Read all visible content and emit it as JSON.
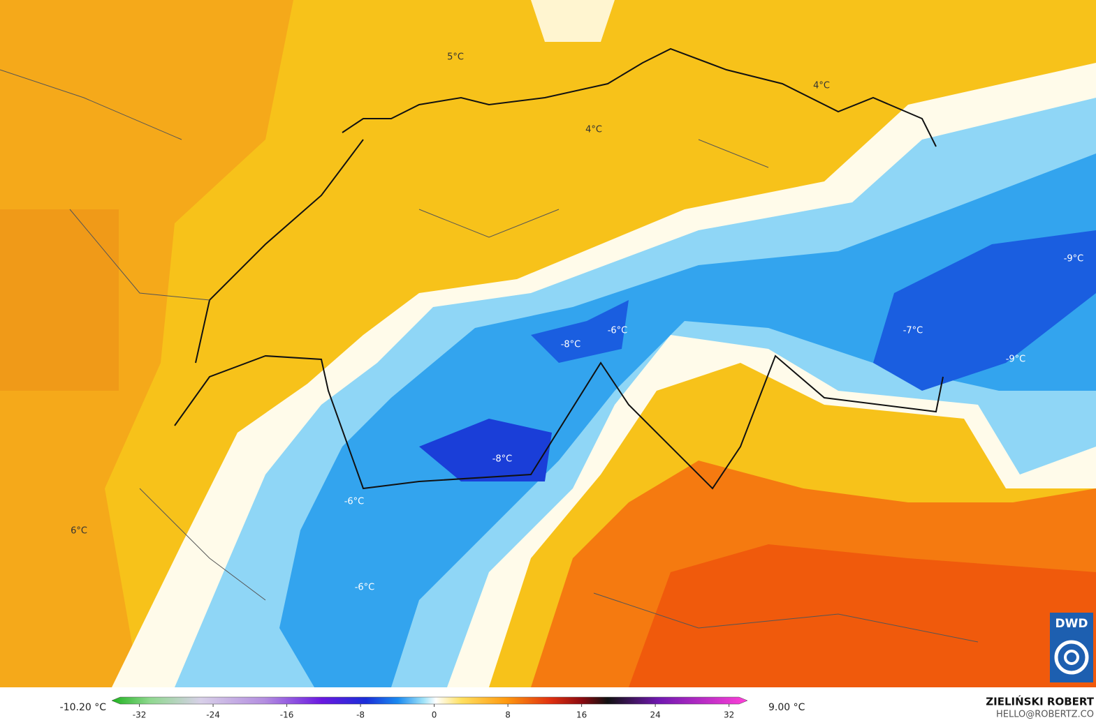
{
  "map": {
    "labels": [
      "5°C",
      "4°C",
      "4°C",
      "-9°C",
      "-6°C",
      "-8°C",
      "-7°C",
      "-9°C",
      "-8°C",
      "-6°C",
      "6°C",
      "-6°C"
    ],
    "logo": "DWD"
  },
  "colorbar": {
    "min_label": "-10.20 °C",
    "max_label": "9.00 °C",
    "lim": [
      -35,
      34
    ],
    "ticks": [
      -32,
      -24,
      -16,
      -8,
      0,
      8,
      16,
      24,
      32
    ]
  },
  "credit": {
    "author": "ZIELIŃSKI ROBERT",
    "email": "HELLO@ROBERTZ.CO"
  }
}
